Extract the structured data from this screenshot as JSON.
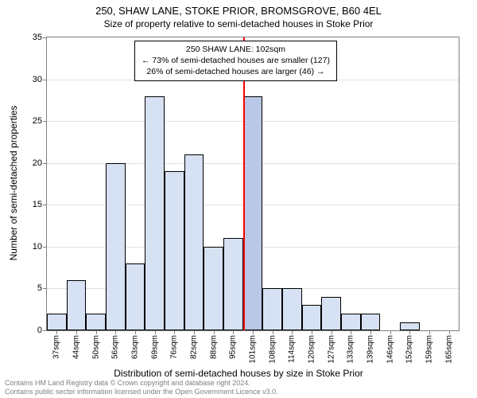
{
  "title_main": "250, SHAW LANE, STOKE PRIOR, BROMSGROVE, B60 4EL",
  "title_sub": "Size of property relative to semi-detached houses in Stoke Prior",
  "ylabel": "Number of semi-detached properties",
  "xlabel": "Distribution of semi-detached houses by size in Stoke Prior",
  "footer_line1": "Contains HM Land Registry data © Crown copyright and database right 2024.",
  "footer_line2": "Contains public sector information licensed under the Open Government Licence v3.0.",
  "chart": {
    "type": "bar",
    "ylim": [
      0,
      35
    ],
    "ytick_step": 5,
    "background_color": "#ffffff",
    "grid_color": "#e0e0e0",
    "axis_color": "#808080",
    "bar_fill": "#d6e1f3",
    "bar_border": "#000000",
    "highlight_fill": "#b9c8e6",
    "marker_color": "#ff0000",
    "categories": [
      "37sqm",
      "44sqm",
      "50sqm",
      "56sqm",
      "63sqm",
      "69sqm",
      "76sqm",
      "82sqm",
      "88sqm",
      "95sqm",
      "101sqm",
      "108sqm",
      "114sqm",
      "120sqm",
      "127sqm",
      "133sqm",
      "139sqm",
      "146sqm",
      "152sqm",
      "159sqm",
      "165sqm"
    ],
    "values": [
      2,
      6,
      2,
      20,
      8,
      28,
      19,
      21,
      10,
      11,
      28,
      5,
      5,
      3,
      4,
      2,
      2,
      0,
      1,
      0,
      0
    ],
    "highlight_index": 10,
    "marker_between": [
      9,
      10
    ],
    "bar_width_ratio": 1.0
  },
  "info_box": {
    "line1": "250 SHAW LANE: 102sqm",
    "line2": "← 73% of semi-detached houses are smaller (127)",
    "line3": "26% of semi-detached houses are larger (46) →",
    "border": "#000000",
    "bg": "#ffffff",
    "fontsize": 10.5
  }
}
